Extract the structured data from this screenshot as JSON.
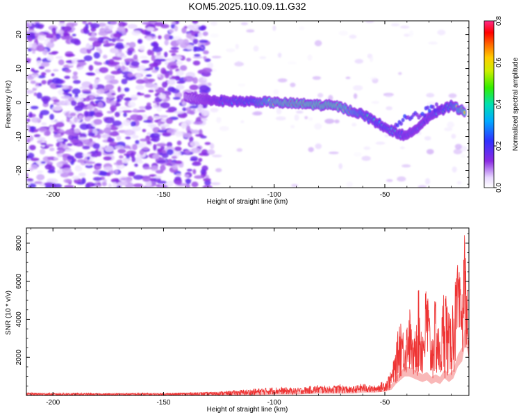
{
  "title": "KOM5.2025.110.09.11.G32",
  "chart_data": [
    {
      "type": "heatmap",
      "xlabel": "Height of straight line (km)",
      "ylabel": "Frequency (Hz)",
      "xlim": [
        -212,
        -12
      ],
      "ylim": [
        -25,
        24
      ],
      "xticks": [
        -200,
        -150,
        -100,
        -50
      ],
      "xtick_labels": [
        "-200",
        "-150",
        "-100",
        "-50"
      ],
      "yticks": [
        -20,
        -10,
        0,
        10,
        20
      ],
      "ytick_labels": [
        "-20",
        "-10",
        "0",
        "10",
        "20"
      ],
      "colorbar": {
        "label": "Normalized spectral amplitude",
        "range": [
          0.0,
          0.8
        ],
        "ticks": [
          0.0,
          0.2,
          0.4,
          0.6,
          0.8
        ],
        "tick_labels": [
          "0.0",
          "0.2",
          "0.4",
          "0.6",
          "0.8"
        ],
        "colormap": "rainbow (white-violet-blue-cyan-green-yellow-red-magenta)"
      },
      "features": {
        "noise_region_x": [
          -212,
          -130
        ],
        "noise_level": "0.0-0.2",
        "signal_track": [
          {
            "x": -140,
            "y": 1.5,
            "v": 0.15
          },
          {
            "x": -125,
            "y": 0.5,
            "v": 0.3
          },
          {
            "x": -110,
            "y": 0.3,
            "v": 0.45
          },
          {
            "x": -100,
            "y": 0.0,
            "v": 0.7
          },
          {
            "x": -85,
            "y": -0.5,
            "v": 0.75
          },
          {
            "x": -72,
            "y": -1.0,
            "v": 0.75
          },
          {
            "x": -60,
            "y": -3.5,
            "v": 0.5
          },
          {
            "x": -48,
            "y": -8.0,
            "v": 0.4
          },
          {
            "x": -40,
            "y": -10.0,
            "v": 0.3
          },
          {
            "x": -30,
            "y": -4.0,
            "v": 0.3
          },
          {
            "x": -20,
            "y": -1.0,
            "v": 0.5
          },
          {
            "x": -14,
            "y": -2.5,
            "v": 0.75
          }
        ]
      }
    },
    {
      "type": "line",
      "xlabel": "Height of straight line (km)",
      "ylabel": "SNR (10 * v/v)",
      "xlim": [
        -212,
        -12
      ],
      "ylim": [
        0,
        8800
      ],
      "xticks": [
        -200,
        -150,
        -100,
        -50
      ],
      "xtick_labels": [
        "-200",
        "-150",
        "-100",
        "-50"
      ],
      "yticks": [
        2000,
        4000,
        6000,
        8000
      ],
      "ytick_labels": [
        "2000",
        "4000",
        "6000",
        "8000"
      ],
      "color": "#ee3333",
      "series": [
        {
          "x": [
            -212,
            -200,
            -190,
            -180,
            -170,
            -160,
            -150,
            -140,
            -130,
            -120,
            -110,
            -100,
            -90,
            -80,
            -75,
            -70,
            -65,
            -60,
            -55,
            -50,
            -47,
            -45,
            -43,
            -41,
            -39,
            -37,
            -35,
            -33,
            -31,
            -29,
            -27,
            -25,
            -23,
            -21,
            -19,
            -17,
            -15,
            -14,
            -13,
            -12
          ],
          "y": [
            150,
            120,
            130,
            110,
            120,
            130,
            120,
            150,
            180,
            250,
            350,
            450,
            400,
            550,
            500,
            600,
            450,
            650,
            500,
            800,
            1300,
            2500,
            4500,
            3000,
            5000,
            2500,
            6000,
            3500,
            6500,
            3000,
            5500,
            2800,
            6700,
            4000,
            5500,
            7000,
            5500,
            8800,
            6500,
            2000
          ],
          "envelope_min": [
            0,
            0,
            0,
            0,
            0,
            0,
            0,
            0,
            0,
            0,
            0,
            50,
            50,
            100,
            100,
            100,
            100,
            150,
            150,
            200,
            300,
            600,
            800,
            1000,
            1000,
            900,
            800,
            700,
            800,
            600,
            700,
            600,
            900,
            700,
            900,
            1500,
            1800,
            2500,
            2500,
            2000
          ]
        }
      ]
    }
  ]
}
